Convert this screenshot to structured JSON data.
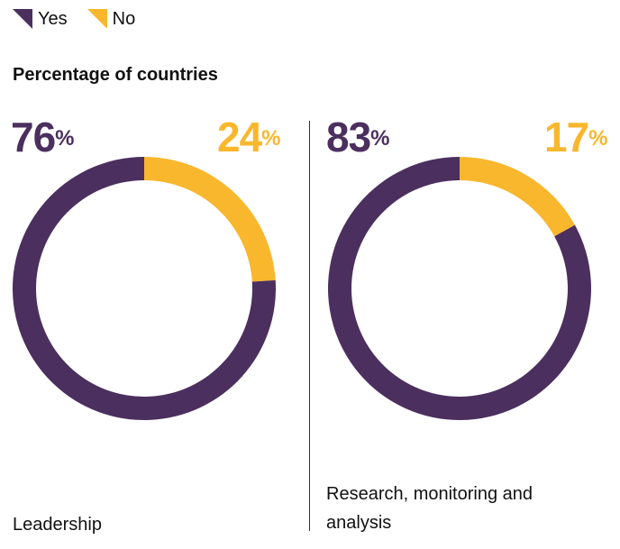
{
  "legend": {
    "items": [
      {
        "label": "Yes",
        "color": "#4b2f5e"
      },
      {
        "label": "No",
        "color": "#f8b72d"
      }
    ]
  },
  "subtitle": "Percentage of countries",
  "chart_data": [
    {
      "type": "pie",
      "categories": [
        "Yes",
        "No"
      ],
      "values": [
        76,
        24
      ],
      "unit": "%",
      "xlabel": "Leadership",
      "colors": [
        "#4b2f5e",
        "#f8b72d"
      ]
    },
    {
      "type": "pie",
      "categories": [
        "Yes",
        "No"
      ],
      "values": [
        83,
        17
      ],
      "unit": "%",
      "xlabel": "Research, monitoring and analysis",
      "colors": [
        "#4b2f5e",
        "#f8b72d"
      ]
    }
  ]
}
